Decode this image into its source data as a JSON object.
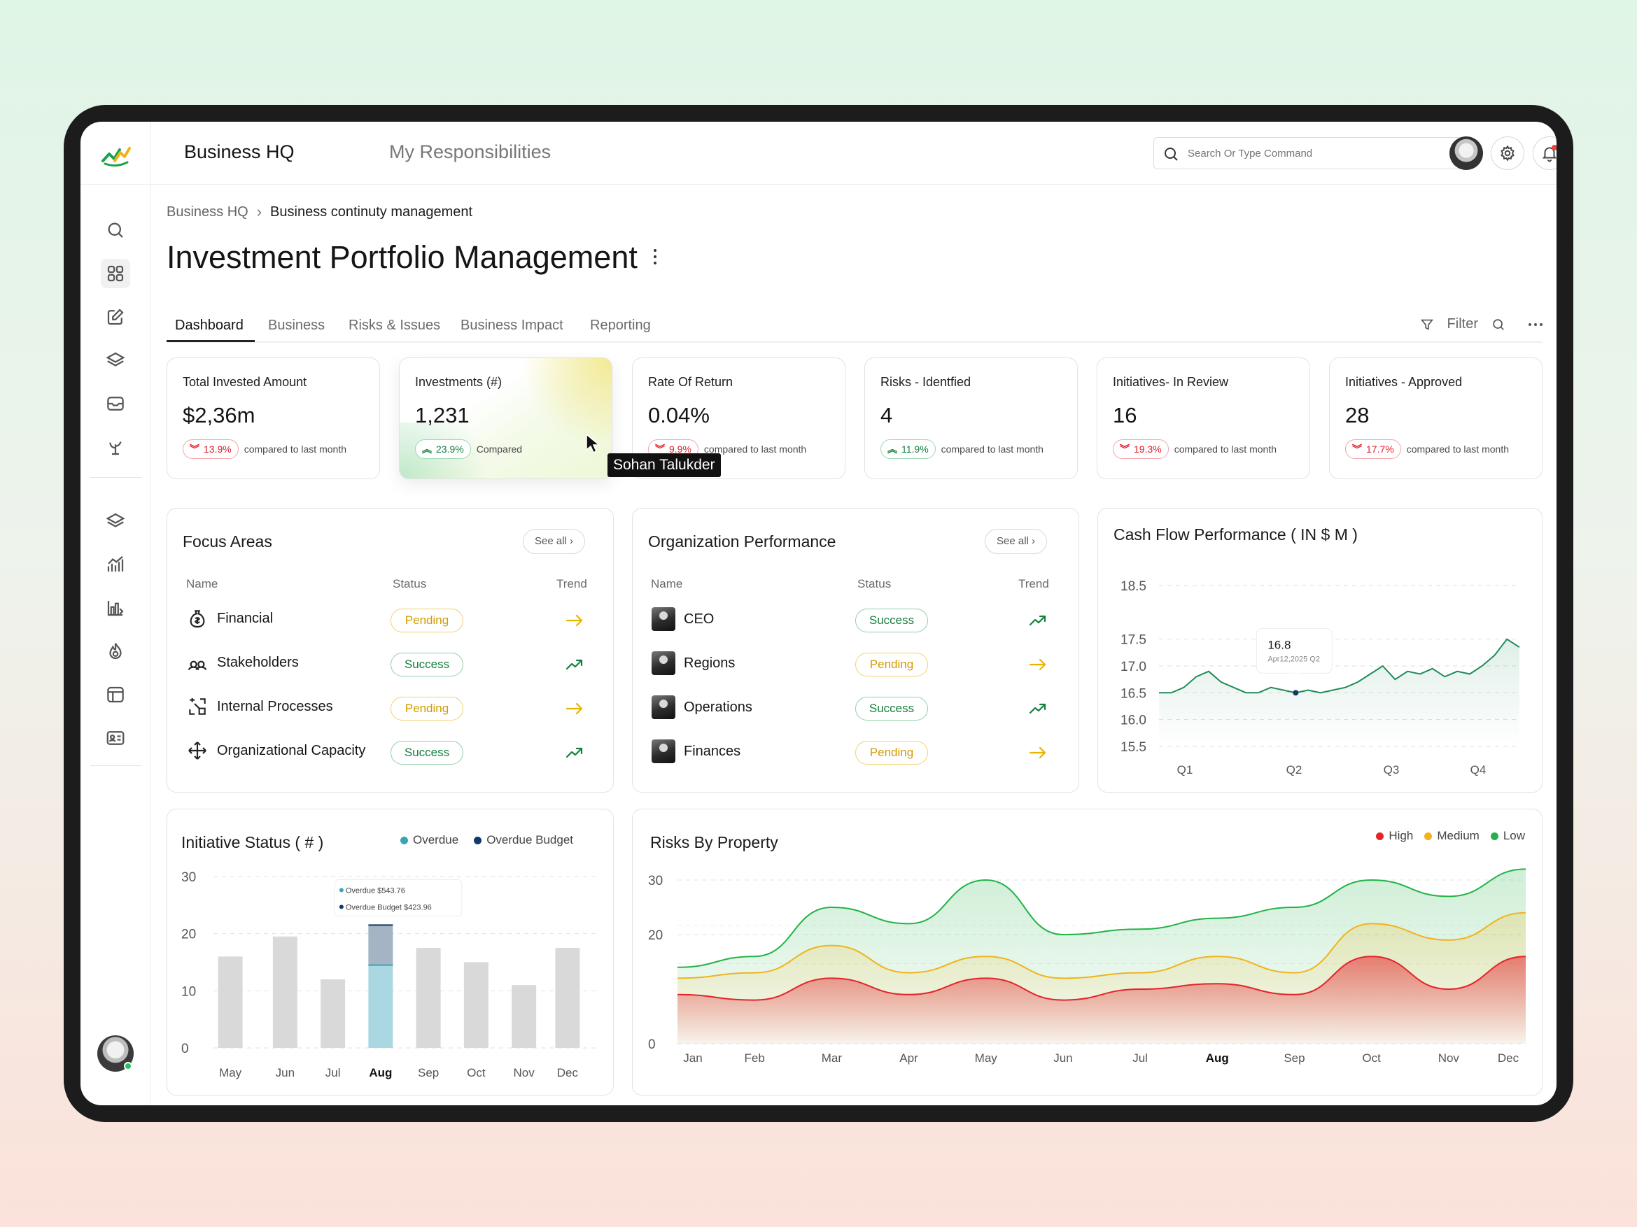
{
  "topbar": {
    "app_title": "Business HQ",
    "app_subtitle": "My Responsibilities",
    "search_placeholder": "Search Or Type Command"
  },
  "breadcrumb": {
    "root": "Business HQ",
    "current": "Business continuty management"
  },
  "page": {
    "title": "Investment Portfolio Management"
  },
  "tabs": [
    "Dashboard",
    "Business",
    "Risks & Issues",
    "Business Impact",
    "Reporting"
  ],
  "active_tab": "Dashboard",
  "tab_tools": {
    "filter_label": "Filter"
  },
  "kpis": [
    {
      "label": "Total Invested Amount",
      "value": "$2,36m",
      "delta": "13.9%",
      "direction": "down",
      "note": "compared to last month"
    },
    {
      "label": "Investments (#)",
      "value": "1,231",
      "delta": "23.9%",
      "direction": "up",
      "note": "Compared"
    },
    {
      "label": "Rate Of Return",
      "value": "0.04%",
      "delta": "9.9%",
      "direction": "down",
      "note": "compared to last month"
    },
    {
      "label": "Risks - Identfied",
      "value": "4",
      "delta": "11.9%",
      "direction": "up",
      "note": "compared to last month"
    },
    {
      "label": "Initiatives- In Review",
      "value": "16",
      "delta": "19.3%",
      "direction": "down",
      "note": "compared to last month"
    },
    {
      "label": "Initiatives - Approved",
      "value": "28",
      "delta": "17.7%",
      "direction": "down",
      "note": "compared to last month"
    }
  ],
  "hover_tooltip": "Sohan Talukder",
  "focus_areas": {
    "title": "Focus Areas",
    "see_all": "See all",
    "headers": {
      "name": "Name",
      "status": "Status",
      "trend": "Trend"
    },
    "rows": [
      {
        "name": "Financial",
        "status": "Pending",
        "trend": "flat",
        "icon": "money-bag-icon"
      },
      {
        "name": "Stakeholders",
        "status": "Success",
        "trend": "up",
        "icon": "people-icon"
      },
      {
        "name": "Internal Processes",
        "status": "Pending",
        "trend": "flat",
        "icon": "process-icon"
      },
      {
        "name": "Organizational Capacity",
        "status": "Success",
        "trend": "up",
        "icon": "expand-arrows-icon"
      }
    ]
  },
  "org_performance": {
    "title": "Organization Performance",
    "see_all": "See all",
    "headers": {
      "name": "Name",
      "status": "Status",
      "trend": "Trend"
    },
    "rows": [
      {
        "name": "CEO",
        "status": "Success",
        "trend": "up"
      },
      {
        "name": "Regions",
        "status": "Pending",
        "trend": "flat"
      },
      {
        "name": "Operations",
        "status": "Success",
        "trend": "up"
      },
      {
        "name": "Finances",
        "status": "Pending",
        "trend": "flat"
      }
    ]
  },
  "colors": {
    "success": "#15803d",
    "pending": "#d49a00",
    "danger": "#e11d2a",
    "line_green": "#1f8a5a",
    "overdue": "#3ba3b8",
    "overdue_budget": "#0d3b66",
    "high": "#e5232a",
    "medium": "#f2b318",
    "low": "#22b348"
  },
  "chart_data": [
    {
      "type": "line",
      "title": "Cash Flow Performance ( IN $ M )",
      "x_ticks": [
        "Q1",
        "Q2",
        "Q3",
        "Q4"
      ],
      "y_ticks": [
        "18.5",
        "17.5",
        "17.0",
        "16.5",
        "16.0",
        "15.5"
      ],
      "ylim": [
        15.5,
        18.5
      ],
      "grid": true,
      "series": [
        {
          "values": [
            16.5,
            16.5,
            16.6,
            16.8,
            16.9,
            16.7,
            16.6,
            16.5,
            16.5,
            16.6,
            16.55,
            16.5,
            16.55,
            16.5,
            16.55,
            16.6,
            16.7,
            16.85,
            17.0,
            16.75,
            16.9,
            16.85,
            16.95,
            16.8,
            16.9,
            16.85,
            17.0,
            17.2,
            17.5,
            17.35
          ]
        }
      ],
      "tooltip": {
        "value": "16.8",
        "date": "Apr12,2025 Q2"
      }
    },
    {
      "type": "bar",
      "title": "Initiative Status ( # )",
      "categories": [
        "May",
        "Jun",
        "Jul",
        "Aug",
        "Sep",
        "Oct",
        "Nov",
        "Dec"
      ],
      "highlight": "Aug",
      "y_ticks": [
        "30",
        "20",
        "10",
        "0"
      ],
      "ylim": [
        0,
        30
      ],
      "series": [
        {
          "name": "Overdue",
          "values": [
            16,
            19.5,
            12,
            14.5,
            17.5,
            15,
            11,
            17.5
          ]
        },
        {
          "name": "Overdue Budget",
          "values": [
            0,
            0,
            0,
            7,
            0,
            0,
            0,
            0
          ]
        }
      ],
      "tooltip": {
        "line1": "Overdue $543.76",
        "line2": "Overdue Budget $423.96"
      }
    },
    {
      "type": "area",
      "title": "Risks By Property",
      "categories": [
        "Jan",
        "Feb",
        "Mar",
        "Apr",
        "May",
        "Jun",
        "Jul",
        "Aug",
        "Sep",
        "Oct",
        "Nov",
        "Dec"
      ],
      "highlight": "Aug",
      "y_ticks": [
        "30",
        "20",
        "0"
      ],
      "ylim": [
        0,
        35
      ],
      "series": [
        {
          "name": "High",
          "values": [
            9,
            8,
            12,
            9,
            12,
            8,
            10,
            11,
            9,
            16,
            10,
            16
          ]
        },
        {
          "name": "Medium",
          "values": [
            12,
            13,
            18,
            13,
            16,
            12,
            13,
            16,
            13,
            22,
            19,
            24
          ]
        },
        {
          "name": "Low",
          "values": [
            14,
            16,
            25,
            22,
            30,
            20,
            21,
            23,
            25,
            30,
            27,
            32
          ]
        }
      ],
      "legend": "top-right"
    }
  ]
}
